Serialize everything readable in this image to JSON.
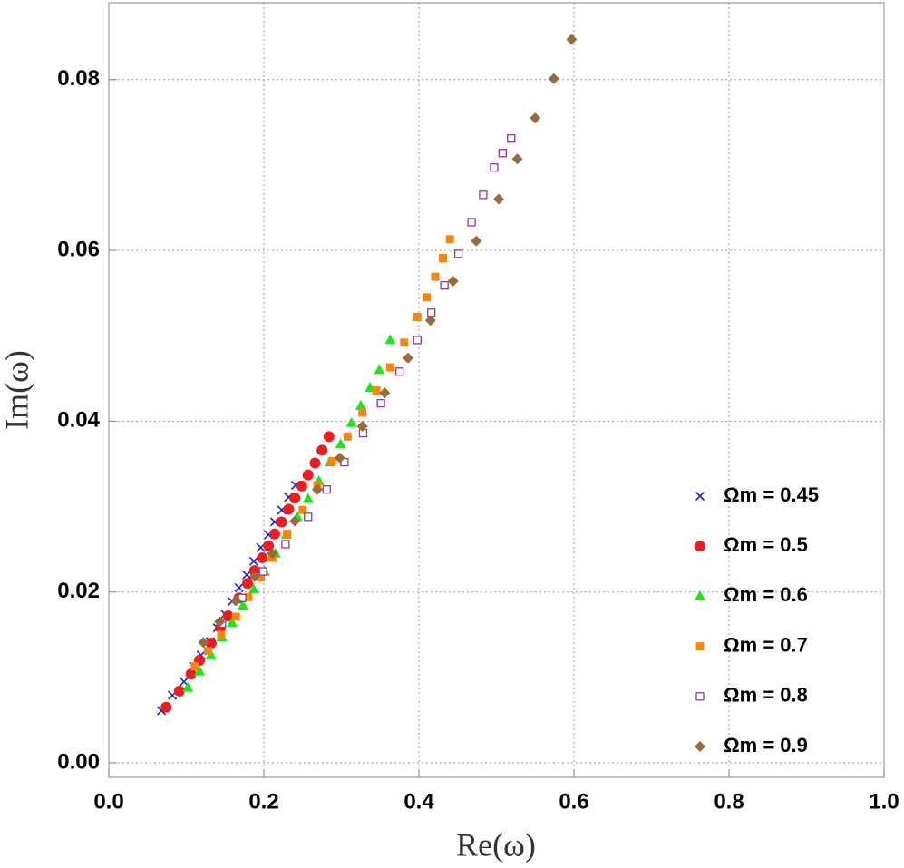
{
  "chart_data": {
    "type": "scatter",
    "xlabel": "Re(ω)",
    "ylabel": "Im(ω)",
    "xlim": [
      0,
      1
    ],
    "ylim": [
      -0.0017,
      0.089
    ],
    "xticks": [
      {
        "value": 0,
        "label": "0.0"
      },
      {
        "value": 0.2,
        "label": "0.2"
      },
      {
        "value": 0.4,
        "label": "0.4"
      },
      {
        "value": 0.6,
        "label": "0.6"
      },
      {
        "value": 0.8,
        "label": "0.8"
      },
      {
        "value": 1,
        "label": "1.0"
      }
    ],
    "yticks": [
      {
        "value": 0,
        "label": "0.00"
      },
      {
        "value": 0.02,
        "label": "0.02"
      },
      {
        "value": 0.04,
        "label": "0.04"
      },
      {
        "value": 0.06,
        "label": "0.06"
      },
      {
        "value": 0.08,
        "label": "0.08"
      }
    ],
    "grid": true,
    "legend": "right",
    "series": [
      {
        "name": "Ωm = 0.45",
        "color": "#1f1fd6",
        "marker": "cross",
        "x": [
          0.068,
          0.082,
          0.097,
          0.109,
          0.119,
          0.131,
          0.14,
          0.15,
          0.159,
          0.168,
          0.178,
          0.187,
          0.196,
          0.206,
          0.214,
          0.223,
          0.232,
          0.241
        ],
        "values": [
          0.0061,
          0.0079,
          0.0095,
          0.0113,
          0.0126,
          0.0142,
          0.0158,
          0.0174,
          0.0189,
          0.0205,
          0.022,
          0.0236,
          0.0252,
          0.0267,
          0.0282,
          0.0296,
          0.0311,
          0.0325
        ]
      },
      {
        "name": "Ωm = 0.5",
        "color": "#ee1c1c",
        "marker": "circle",
        "x": [
          0.074,
          0.091,
          0.106,
          0.117,
          0.132,
          0.144,
          0.154,
          0.168,
          0.179,
          0.188,
          0.198,
          0.206,
          0.214,
          0.223,
          0.232,
          0.24,
          0.249,
          0.257,
          0.266,
          0.275,
          0.284
        ],
        "values": [
          0.0065,
          0.0084,
          0.0104,
          0.012,
          0.014,
          0.0158,
          0.0172,
          0.0193,
          0.021,
          0.0225,
          0.024,
          0.0254,
          0.0268,
          0.0282,
          0.0297,
          0.031,
          0.0324,
          0.0337,
          0.0351,
          0.0366,
          0.0382
        ]
      },
      {
        "name": "Ωm = 0.6",
        "color": "#1ee61e",
        "marker": "triangle",
        "x": [
          0.102,
          0.117,
          0.132,
          0.146,
          0.159,
          0.173,
          0.187,
          0.201,
          0.215,
          0.229,
          0.243,
          0.257,
          0.271,
          0.285,
          0.299,
          0.313,
          0.325,
          0.337,
          0.349,
          0.363
        ],
        "values": [
          0.0088,
          0.0107,
          0.0126,
          0.0147,
          0.0164,
          0.0184,
          0.0203,
          0.0224,
          0.0245,
          0.0267,
          0.0288,
          0.0309,
          0.033,
          0.0352,
          0.0373,
          0.0398,
          0.0418,
          0.0439,
          0.046,
          0.0495
        ]
      },
      {
        "name": "Ωm = 0.7",
        "color": "#f7870f",
        "marker": "square",
        "x": [
          0.111,
          0.128,
          0.145,
          0.164,
          0.18,
          0.196,
          0.211,
          0.23,
          0.25,
          0.269,
          0.288,
          0.308,
          0.327,
          0.345,
          0.363,
          0.381,
          0.398,
          0.41,
          0.421,
          0.431,
          0.44
        ],
        "values": [
          0.0113,
          0.0131,
          0.015,
          0.0171,
          0.0194,
          0.0217,
          0.024,
          0.0268,
          0.0296,
          0.0325,
          0.0353,
          0.0382,
          0.041,
          0.0436,
          0.0463,
          0.0492,
          0.0522,
          0.0545,
          0.0569,
          0.0591,
          0.0613
        ]
      },
      {
        "name": "Ωm = 0.8",
        "color": "#8f3a9c",
        "marker": "open-square",
        "x": [
          0.146,
          0.172,
          0.199,
          0.228,
          0.257,
          0.281,
          0.304,
          0.328,
          0.351,
          0.375,
          0.398,
          0.416,
          0.433,
          0.451,
          0.468,
          0.483,
          0.497,
          0.508,
          0.519
        ],
        "values": [
          0.0163,
          0.0193,
          0.0224,
          0.0256,
          0.0288,
          0.032,
          0.0352,
          0.0386,
          0.0421,
          0.0458,
          0.0495,
          0.0527,
          0.0559,
          0.0596,
          0.0633,
          0.0665,
          0.0697,
          0.0714,
          0.0731
        ]
      },
      {
        "name": "Ωm = 0.9",
        "color": "#9b6a3a",
        "marker": "diamond",
        "x": [
          0.122,
          0.143,
          0.164,
          0.188,
          0.211,
          0.24,
          0.269,
          0.298,
          0.327,
          0.356,
          0.386,
          0.415,
          0.444,
          0.474,
          0.503,
          0.527,
          0.55,
          0.574,
          0.597
        ],
        "values": [
          0.0141,
          0.0165,
          0.019,
          0.0218,
          0.0245,
          0.0283,
          0.032,
          0.0357,
          0.0394,
          0.0433,
          0.0474,
          0.0518,
          0.0564,
          0.0611,
          0.066,
          0.0707,
          0.0755,
          0.0801,
          0.0847
        ]
      }
    ]
  }
}
